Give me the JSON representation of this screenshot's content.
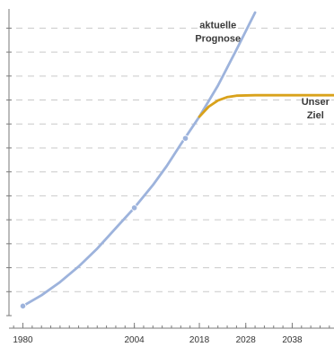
{
  "chart_data": {
    "type": "line",
    "title": "",
    "xlabel": "",
    "ylabel": "",
    "x_ticks": [
      1980,
      2004,
      2018,
      2028,
      2038
    ],
    "xlim": [
      1977,
      2047
    ],
    "ylim": [
      0,
      12.8
    ],
    "grid": true,
    "series": [
      {
        "color": "#9db3dc",
        "style": "solid",
        "points": [
          [
            1980,
            0.4
          ],
          [
            1984,
            0.85
          ],
          [
            1988,
            1.4
          ],
          [
            1992,
            2.05
          ],
          [
            1996,
            2.8
          ],
          [
            2000,
            3.65
          ],
          [
            2004,
            4.5
          ],
          [
            2008,
            5.45
          ],
          [
            2011,
            6.25
          ],
          [
            2014,
            7.15
          ],
          [
            2018,
            8.3
          ],
          [
            2022,
            9.6
          ],
          [
            2026,
            11.1
          ],
          [
            2030,
            12.65
          ]
        ],
        "markers": [
          [
            1980,
            0.4
          ],
          [
            2004,
            4.5
          ],
          [
            2015,
            7.4
          ]
        ]
      },
      {
        "color": "#d9a21b",
        "style": "solid",
        "points": [
          [
            2018,
            8.3
          ],
          [
            2020,
            8.72
          ],
          [
            2022,
            8.98
          ],
          [
            2024,
            9.12
          ],
          [
            2026,
            9.18
          ],
          [
            2030,
            9.2
          ],
          [
            2035,
            9.2
          ],
          [
            2040,
            9.2
          ],
          [
            2047,
            9.2
          ]
        ],
        "markers": []
      }
    ],
    "annotations": [
      {
        "lines": [
          "aktuelle",
          "Prognose"
        ],
        "x": 2022,
        "y": 12.0
      },
      {
        "lines": [
          "Unser",
          "Ziel"
        ],
        "x": 2043,
        "y": 8.8
      }
    ]
  }
}
